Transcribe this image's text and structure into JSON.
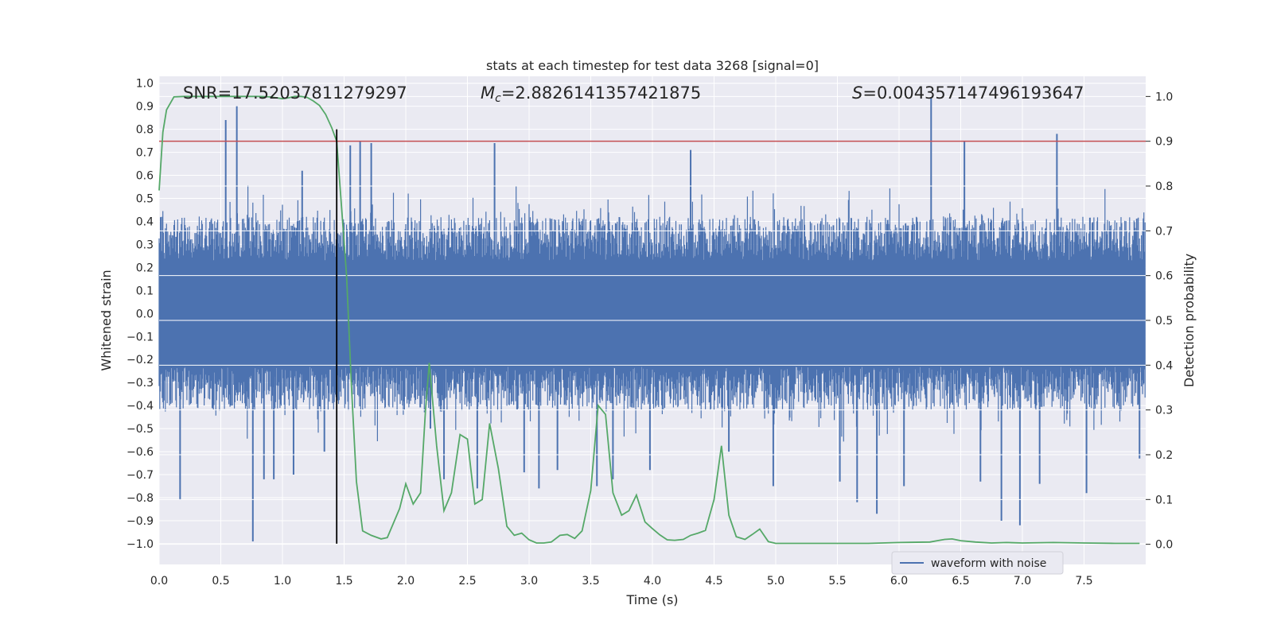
{
  "chart_data": {
    "type": "line",
    "title": "stats at each timestep for test data 3268 [signal=0]",
    "xlabel": "Time (s)",
    "ylabel_left": "Whitened strain",
    "ylabel_right": "Detection probability",
    "xlim": [
      0.0,
      8.0
    ],
    "ylim_left": [
      -1.09,
      1.03
    ],
    "ylim_right": [
      -0.045,
      1.045
    ],
    "x_ticks": [
      0.0,
      0.5,
      1.0,
      1.5,
      2.0,
      2.5,
      3.0,
      3.5,
      4.0,
      4.5,
      5.0,
      5.5,
      6.0,
      6.5,
      7.0,
      7.5
    ],
    "x_tick_labels": [
      "0.0",
      "0.5",
      "1.0",
      "1.5",
      "2.0",
      "2.5",
      "3.0",
      "3.5",
      "4.0",
      "4.5",
      "5.0",
      "5.5",
      "6.0",
      "6.5",
      "7.0",
      "7.5"
    ],
    "y_left_ticks": [
      1.0,
      0.9,
      0.8,
      0.7,
      0.6,
      0.5,
      0.4,
      0.3,
      0.2,
      0.1,
      0.0,
      -0.1,
      -0.2,
      -0.3,
      -0.4,
      -0.5,
      -0.6,
      -0.7,
      -0.8,
      -0.9,
      -1.0
    ],
    "y_left_tick_labels": [
      "1.0",
      "0.9",
      "0.8",
      "0.7",
      "0.6",
      "0.5",
      "0.4",
      "0.3",
      "0.2",
      "0.1",
      "0.0",
      "−0.1",
      "−0.2",
      "−0.3",
      "−0.4",
      "−0.5",
      "−0.6",
      "−0.7",
      "−0.8",
      "−0.9",
      "−1.0"
    ],
    "y_right_ticks": [
      1.0,
      0.9,
      0.8,
      0.7,
      0.6,
      0.5,
      0.4,
      0.3,
      0.2,
      0.1,
      0.0
    ],
    "y_right_tick_labels": [
      "1.0",
      "0.9",
      "0.8",
      "0.7",
      "0.6",
      "0.5",
      "0.4",
      "0.3",
      "0.2",
      "0.1",
      "0.0"
    ],
    "grid": true,
    "annotations": {
      "snr": "SNR=17.52037811279297",
      "mc_symbol": "M",
      "mc_sub": "c",
      "mc_value": "=2.8826141357421875",
      "s_symbol": "S",
      "s_value": "=0.004357147496193647"
    },
    "threshold": {
      "axis": "right",
      "value": 0.9,
      "color": "#c44e52"
    },
    "vline": {
      "x": 1.44,
      "y_from": -1.0,
      "y_to": 0.8,
      "color": "#000000"
    },
    "waveform": {
      "name": "waveform with noise",
      "axis": "left",
      "color": "#4c72b0",
      "n_samples": 1600,
      "envelope_high": 0.42,
      "envelope_low": -0.42,
      "spikes": [
        {
          "x": 0.17,
          "y": -0.81
        },
        {
          "x": 0.54,
          "y": 0.84
        },
        {
          "x": 0.63,
          "y": 0.9
        },
        {
          "x": 0.76,
          "y": -0.99
        },
        {
          "x": 0.85,
          "y": -0.72
        },
        {
          "x": 0.93,
          "y": -0.72
        },
        {
          "x": 1.09,
          "y": -0.7
        },
        {
          "x": 1.16,
          "y": 0.62
        },
        {
          "x": 1.34,
          "y": -0.6
        },
        {
          "x": 1.55,
          "y": 0.73
        },
        {
          "x": 1.63,
          "y": 0.75
        },
        {
          "x": 1.72,
          "y": 0.74
        },
        {
          "x": 2.2,
          "y": -0.5
        },
        {
          "x": 2.31,
          "y": -0.72
        },
        {
          "x": 2.58,
          "y": -0.76
        },
        {
          "x": 2.72,
          "y": 0.74
        },
        {
          "x": 2.96,
          "y": -0.69
        },
        {
          "x": 3.08,
          "y": -0.76
        },
        {
          "x": 3.23,
          "y": -0.68
        },
        {
          "x": 3.55,
          "y": -0.75
        },
        {
          "x": 3.68,
          "y": -0.72
        },
        {
          "x": 3.98,
          "y": -0.68
        },
        {
          "x": 4.31,
          "y": 0.71
        },
        {
          "x": 4.62,
          "y": -0.6
        },
        {
          "x": 4.98,
          "y": -0.75
        },
        {
          "x": 5.52,
          "y": -0.73
        },
        {
          "x": 5.66,
          "y": -0.82
        },
        {
          "x": 5.82,
          "y": -0.87
        },
        {
          "x": 6.04,
          "y": -0.75
        },
        {
          "x": 6.26,
          "y": 0.94
        },
        {
          "x": 6.53,
          "y": 0.75
        },
        {
          "x": 6.66,
          "y": -0.73
        },
        {
          "x": 6.83,
          "y": -0.9
        },
        {
          "x": 6.98,
          "y": -0.92
        },
        {
          "x": 7.14,
          "y": -0.74
        },
        {
          "x": 7.28,
          "y": 0.78
        },
        {
          "x": 7.52,
          "y": -0.78
        },
        {
          "x": 7.95,
          "y": -0.63
        }
      ]
    },
    "probability": {
      "name": "detection probability",
      "axis": "right",
      "color": "#55a868",
      "x": [
        0.0,
        0.03,
        0.06,
        0.12,
        0.2,
        0.3,
        0.4,
        0.5,
        0.6,
        0.7,
        0.8,
        0.9,
        0.95,
        1.0,
        1.05,
        1.1,
        1.15,
        1.2,
        1.25,
        1.3,
        1.35,
        1.4,
        1.44,
        1.48,
        1.52,
        1.56,
        1.6,
        1.65,
        1.72,
        1.8,
        1.85,
        1.95,
        2.0,
        2.06,
        2.12,
        2.16,
        2.19,
        2.25,
        2.31,
        2.37,
        2.44,
        2.5,
        2.56,
        2.62,
        2.68,
        2.75,
        2.82,
        2.88,
        2.94,
        3.0,
        3.06,
        3.12,
        3.18,
        3.25,
        3.31,
        3.37,
        3.43,
        3.5,
        3.56,
        3.62,
        3.68,
        3.75,
        3.81,
        3.87,
        3.94,
        4.0,
        4.06,
        4.12,
        4.18,
        4.25,
        4.31,
        4.37,
        4.43,
        4.5,
        4.56,
        4.62,
        4.68,
        4.75,
        4.81,
        4.87,
        4.94,
        5.0,
        5.1,
        5.25,
        5.5,
        5.75,
        6.0,
        6.25,
        6.31,
        6.37,
        6.43,
        6.5,
        6.62,
        6.75,
        6.87,
        7.0,
        7.25,
        7.5,
        7.75,
        7.95
      ],
      "y": [
        0.79,
        0.92,
        0.97,
        0.999,
        1.0,
        1.0,
        1.0,
        1.0,
        1.0,
        1.0,
        1.0,
        0.999,
        0.997,
        0.995,
        0.997,
        1.0,
        1.0,
        0.998,
        0.99,
        0.98,
        0.96,
        0.93,
        0.9,
        0.75,
        0.6,
        0.35,
        0.14,
        0.03,
        0.02,
        0.012,
        0.015,
        0.08,
        0.135,
        0.09,
        0.115,
        0.3,
        0.405,
        0.22,
        0.075,
        0.115,
        0.245,
        0.235,
        0.09,
        0.1,
        0.27,
        0.17,
        0.04,
        0.02,
        0.025,
        0.01,
        0.003,
        0.003,
        0.005,
        0.02,
        0.022,
        0.013,
        0.03,
        0.12,
        0.31,
        0.29,
        0.115,
        0.065,
        0.075,
        0.11,
        0.05,
        0.035,
        0.021,
        0.01,
        0.009,
        0.011,
        0.02,
        0.025,
        0.031,
        0.1,
        0.22,
        0.065,
        0.017,
        0.011,
        0.022,
        0.034,
        0.006,
        0.002,
        0.002,
        0.002,
        0.002,
        0.002,
        0.004,
        0.005,
        0.008,
        0.011,
        0.012,
        0.008,
        0.005,
        0.003,
        0.004,
        0.003,
        0.004,
        0.003,
        0.002,
        0.002
      ]
    },
    "legend": {
      "position": "lower-right",
      "entries": [
        "waveform with noise"
      ]
    }
  },
  "colors": {
    "plot_background": "#eaeaf2",
    "grid": "#ffffff",
    "waveform": "#4c72b0",
    "probability": "#55a868",
    "threshold": "#c44e52",
    "vline": "#000000"
  }
}
